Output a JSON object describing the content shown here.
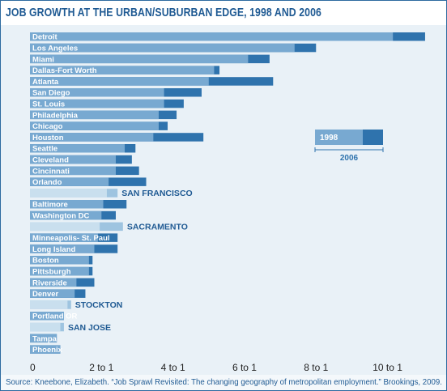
{
  "title": "JOB GROWTH AT THE URBAN/SUBURBAN EDGE, 1998 AND 2006",
  "source": "Source: Kneebone, Elizabeth. “Job Sprawl Revisited: The changing geography of metropolitan employment.” Brookings, 2009.",
  "colors": {
    "bar_1998": "#78a9d1",
    "bar_2006": "#2f73ad",
    "bar_1998_highlight": "#c9dfee",
    "bar_2006_highlight": "#9ec4e0",
    "label_highlight": "#1f5a93"
  },
  "legend": {
    "label_1998": "1998",
    "label_2006": "2006"
  },
  "chart_data": {
    "type": "bar",
    "orientation": "horizontal",
    "xlim": [
      0,
      11.3
    ],
    "x_ticks": [
      {
        "value": 0,
        "label": "0"
      },
      {
        "value": 2,
        "label": "2 to 1"
      },
      {
        "value": 4,
        "label": "4 to 1"
      },
      {
        "value": 6,
        "label": "6 to 1"
      },
      {
        "value": 8,
        "label": "8 to 1"
      },
      {
        "value": 10,
        "label": "10 to 1"
      }
    ],
    "series_names": [
      "1998",
      "2006"
    ],
    "rows": [
      {
        "label": "Detroit",
        "v1998": 10.15,
        "v2006": 11.05,
        "highlight": false
      },
      {
        "label": "Los Angeles",
        "v1998": 7.4,
        "v2006": 8.0,
        "highlight": false
      },
      {
        "label": "Miami",
        "v1998": 6.1,
        "v2006": 6.7,
        "highlight": false
      },
      {
        "label": "Dallas-Fort Worth",
        "v1998": 5.15,
        "v2006": 5.3,
        "highlight": false
      },
      {
        "label": "Atlanta",
        "v1998": 5.0,
        "v2006": 6.8,
        "highlight": false
      },
      {
        "label": "San Diego",
        "v1998": 3.75,
        "v2006": 4.8,
        "highlight": false
      },
      {
        "label": "St. Louis",
        "v1998": 3.75,
        "v2006": 4.3,
        "highlight": false
      },
      {
        "label": "Philadelphia",
        "v1998": 3.6,
        "v2006": 4.1,
        "highlight": false
      },
      {
        "label": "Chicago",
        "v1998": 3.6,
        "v2006": 3.85,
        "highlight": false
      },
      {
        "label": "Houston",
        "v1998": 3.45,
        "v2006": 4.85,
        "highlight": false
      },
      {
        "label": "Seattle",
        "v1998": 2.65,
        "v2006": 2.95,
        "highlight": false
      },
      {
        "label": "Cleveland",
        "v1998": 2.4,
        "v2006": 2.85,
        "highlight": false
      },
      {
        "label": "Cincinnati",
        "v1998": 2.4,
        "v2006": 3.05,
        "highlight": false
      },
      {
        "label": "Orlando",
        "v1998": 2.2,
        "v2006": 3.25,
        "highlight": false
      },
      {
        "label": "SAN FRANCISCO",
        "v1998": 2.15,
        "v2006": 2.45,
        "highlight": true
      },
      {
        "label": "Baltimore",
        "v1998": 2.05,
        "v2006": 2.7,
        "highlight": false
      },
      {
        "label": "Washington DC",
        "v1998": 2.0,
        "v2006": 2.4,
        "highlight": false
      },
      {
        "label": "SACRAMENTO",
        "v1998": 1.95,
        "v2006": 2.6,
        "highlight": true
      },
      {
        "label": "Minneapolis- St. Paul",
        "v1998": 1.9,
        "v2006": 2.45,
        "highlight": false
      },
      {
        "label": "Long Island",
        "v1998": 1.8,
        "v2006": 2.45,
        "highlight": false
      },
      {
        "label": "Boston",
        "v1998": 1.65,
        "v2006": 1.75,
        "highlight": false
      },
      {
        "label": "Pittsburgh",
        "v1998": 1.65,
        "v2006": 1.75,
        "highlight": false
      },
      {
        "label": "Riverside",
        "v1998": 1.3,
        "v2006": 1.8,
        "highlight": false
      },
      {
        "label": "Denver",
        "v1998": 1.25,
        "v2006": 1.55,
        "highlight": false
      },
      {
        "label": "STOCKTON",
        "v1998": 1.05,
        "v2006": 1.15,
        "highlight": true
      },
      {
        "label": "Portland OR",
        "v1998": 0.95,
        "v2006": 0.95,
        "highlight": false
      },
      {
        "label": "SAN JOSE",
        "v1998": 0.85,
        "v2006": 0.95,
        "highlight": true
      },
      {
        "label": "Tampa",
        "v1998": 0.75,
        "v2006": 0.75,
        "highlight": false
      },
      {
        "label": "Phoenix",
        "v1998": 0.85,
        "v2006": 0.85,
        "highlight": false
      }
    ]
  }
}
